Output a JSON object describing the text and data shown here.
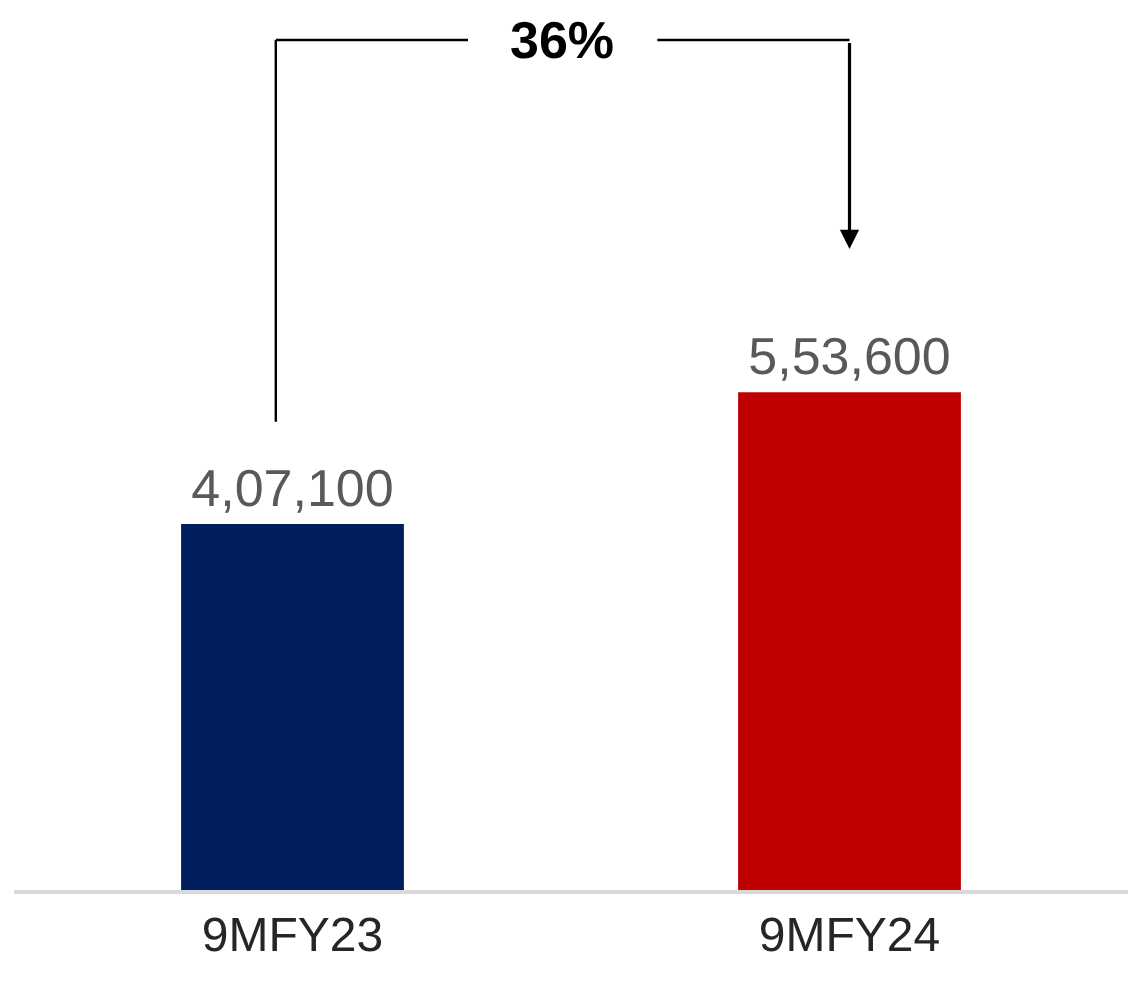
{
  "chart_data": {
    "type": "bar",
    "categories": [
      "9MFY23",
      "9MFY24"
    ],
    "values": [
      407100,
      553600
    ],
    "colors": [
      "#001f5c",
      "#c00000"
    ],
    "value_labels": [
      "4,07,100",
      "5,53,600"
    ],
    "annotations": [
      "36%"
    ],
    "ylim": [
      0,
      990000
    ],
    "tick_labels": "x"
  }
}
